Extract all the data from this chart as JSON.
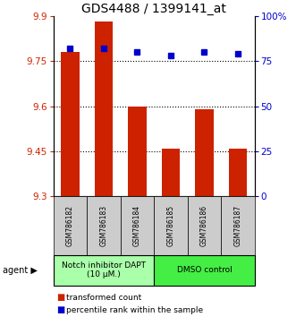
{
  "title": "GDS4488 / 1399141_at",
  "samples": [
    "GSM786182",
    "GSM786183",
    "GSM786184",
    "GSM786185",
    "GSM786186",
    "GSM786187"
  ],
  "bar_values": [
    9.78,
    9.88,
    9.6,
    9.46,
    9.59,
    9.46
  ],
  "percentile_values": [
    82,
    82,
    80,
    78,
    80,
    79
  ],
  "ylim_left": [
    9.3,
    9.9
  ],
  "ylim_right": [
    0,
    100
  ],
  "yticks_left": [
    9.3,
    9.45,
    9.6,
    9.75,
    9.9
  ],
  "ytick_labels_left": [
    "9.3",
    "9.45",
    "9.6",
    "9.75",
    "9.9"
  ],
  "yticks_right": [
    0,
    25,
    50,
    75,
    100
  ],
  "ytick_labels_right": [
    "0",
    "25",
    "50",
    "75",
    "100%"
  ],
  "bar_color": "#cc2200",
  "percentile_color": "#0000cc",
  "bar_bottom": 9.3,
  "groups": [
    {
      "label": "Notch inhibitor DAPT\n(10 μM.)",
      "indices": [
        0,
        1,
        2
      ],
      "color": "#aaffaa"
    },
    {
      "label": "DMSO control",
      "indices": [
        3,
        4,
        5
      ],
      "color": "#44ee44"
    }
  ],
  "legend_items": [
    {
      "label": "transformed count",
      "color": "#cc2200"
    },
    {
      "label": "percentile rank within the sample",
      "color": "#0000cc"
    }
  ],
  "agent_label": "agent",
  "bar_width": 0.55,
  "title_fontsize": 10,
  "tick_fontsize": 7.5,
  "sample_fontsize": 5.5,
  "group_fontsize": 6.5,
  "legend_fontsize": 6.5
}
